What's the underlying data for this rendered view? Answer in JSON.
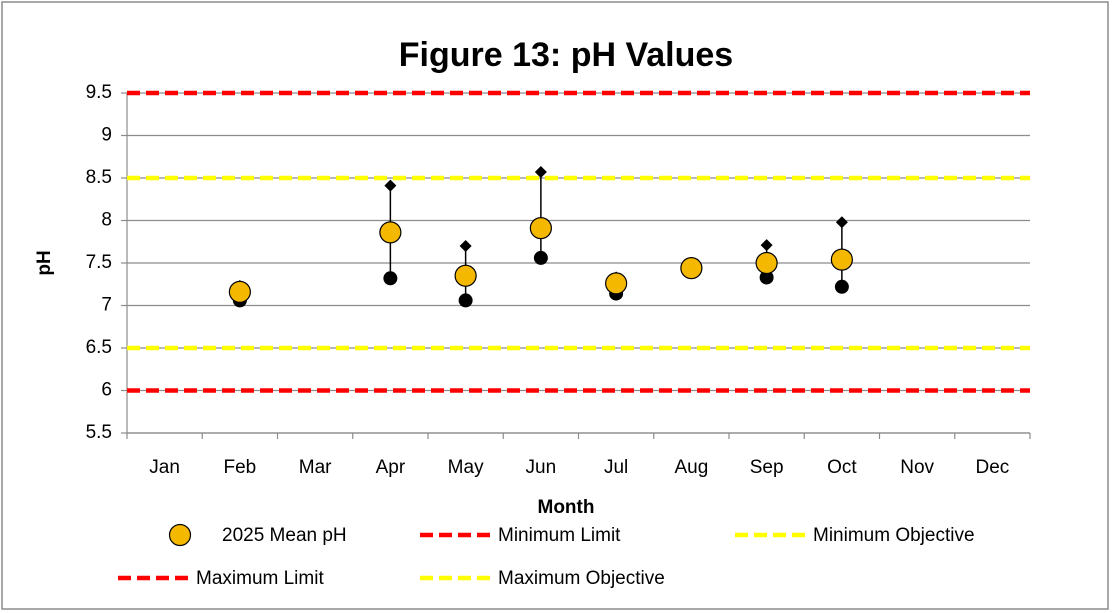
{
  "chart_data": {
    "type": "hilo-scatter",
    "title": "Figure 13:  pH Values",
    "xlabel": "Month",
    "ylabel": "pH",
    "categories": [
      "Jan",
      "Feb",
      "Mar",
      "Apr",
      "May",
      "Jun",
      "Jul",
      "Aug",
      "Sep",
      "Oct",
      "Nov",
      "Dec"
    ],
    "series": [
      {
        "name": "2025 Mean pH",
        "color": "#f5b800",
        "values": [
          null,
          7.16,
          null,
          7.86,
          7.35,
          7.91,
          7.26,
          7.44,
          7.5,
          7.54,
          null,
          null
        ]
      }
    ],
    "max_values": [
      null,
      7.23,
      null,
      8.41,
      7.7,
      8.57,
      7.33,
      7.5,
      7.71,
      7.98,
      null,
      null
    ],
    "min_values": [
      null,
      7.06,
      null,
      7.32,
      7.06,
      7.56,
      7.14,
      7.41,
      7.33,
      7.22,
      null,
      null
    ],
    "reference_lines": [
      {
        "name": "Minimum Limit",
        "value": 6,
        "color": "#ff0000"
      },
      {
        "name": "Minimum Objective",
        "value": 6.5,
        "color": "#ffff00"
      },
      {
        "name": "Maximum Limit",
        "value": 9.5,
        "color": "#ff0000"
      },
      {
        "name": "Maximum Objective",
        "value": 8.5,
        "color": "#ffff00"
      }
    ],
    "ylim": [
      5.5,
      9.5
    ],
    "yticks": [
      5.5,
      6,
      6.5,
      7,
      7.5,
      8,
      8.5,
      9,
      9.5
    ],
    "grid": true
  }
}
